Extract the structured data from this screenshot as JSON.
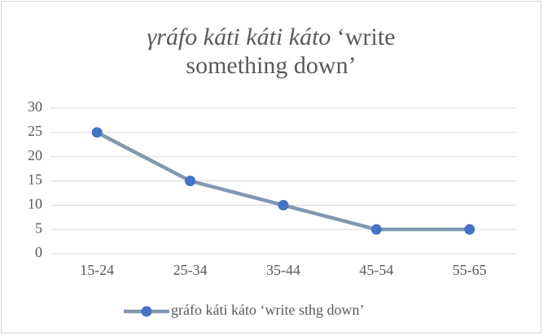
{
  "chart_data": {
    "type": "line",
    "title_term": "γráfo káti káti káto",
    "title_gloss": "‘write something down’",
    "categories": [
      "15-24",
      "25-34",
      "35-44",
      "45-54",
      "55-65"
    ],
    "series": [
      {
        "name": "gráfo káti káto ‘write sthg down’",
        "color": "#8497b0",
        "marker_color": "#4472c4",
        "values": [
          25,
          15,
          10,
          5,
          5
        ]
      }
    ],
    "ylim": [
      0,
      30
    ],
    "yticks": [
      0,
      5,
      10,
      15,
      20,
      25,
      30
    ],
    "grid": true,
    "legend": "bottom"
  }
}
